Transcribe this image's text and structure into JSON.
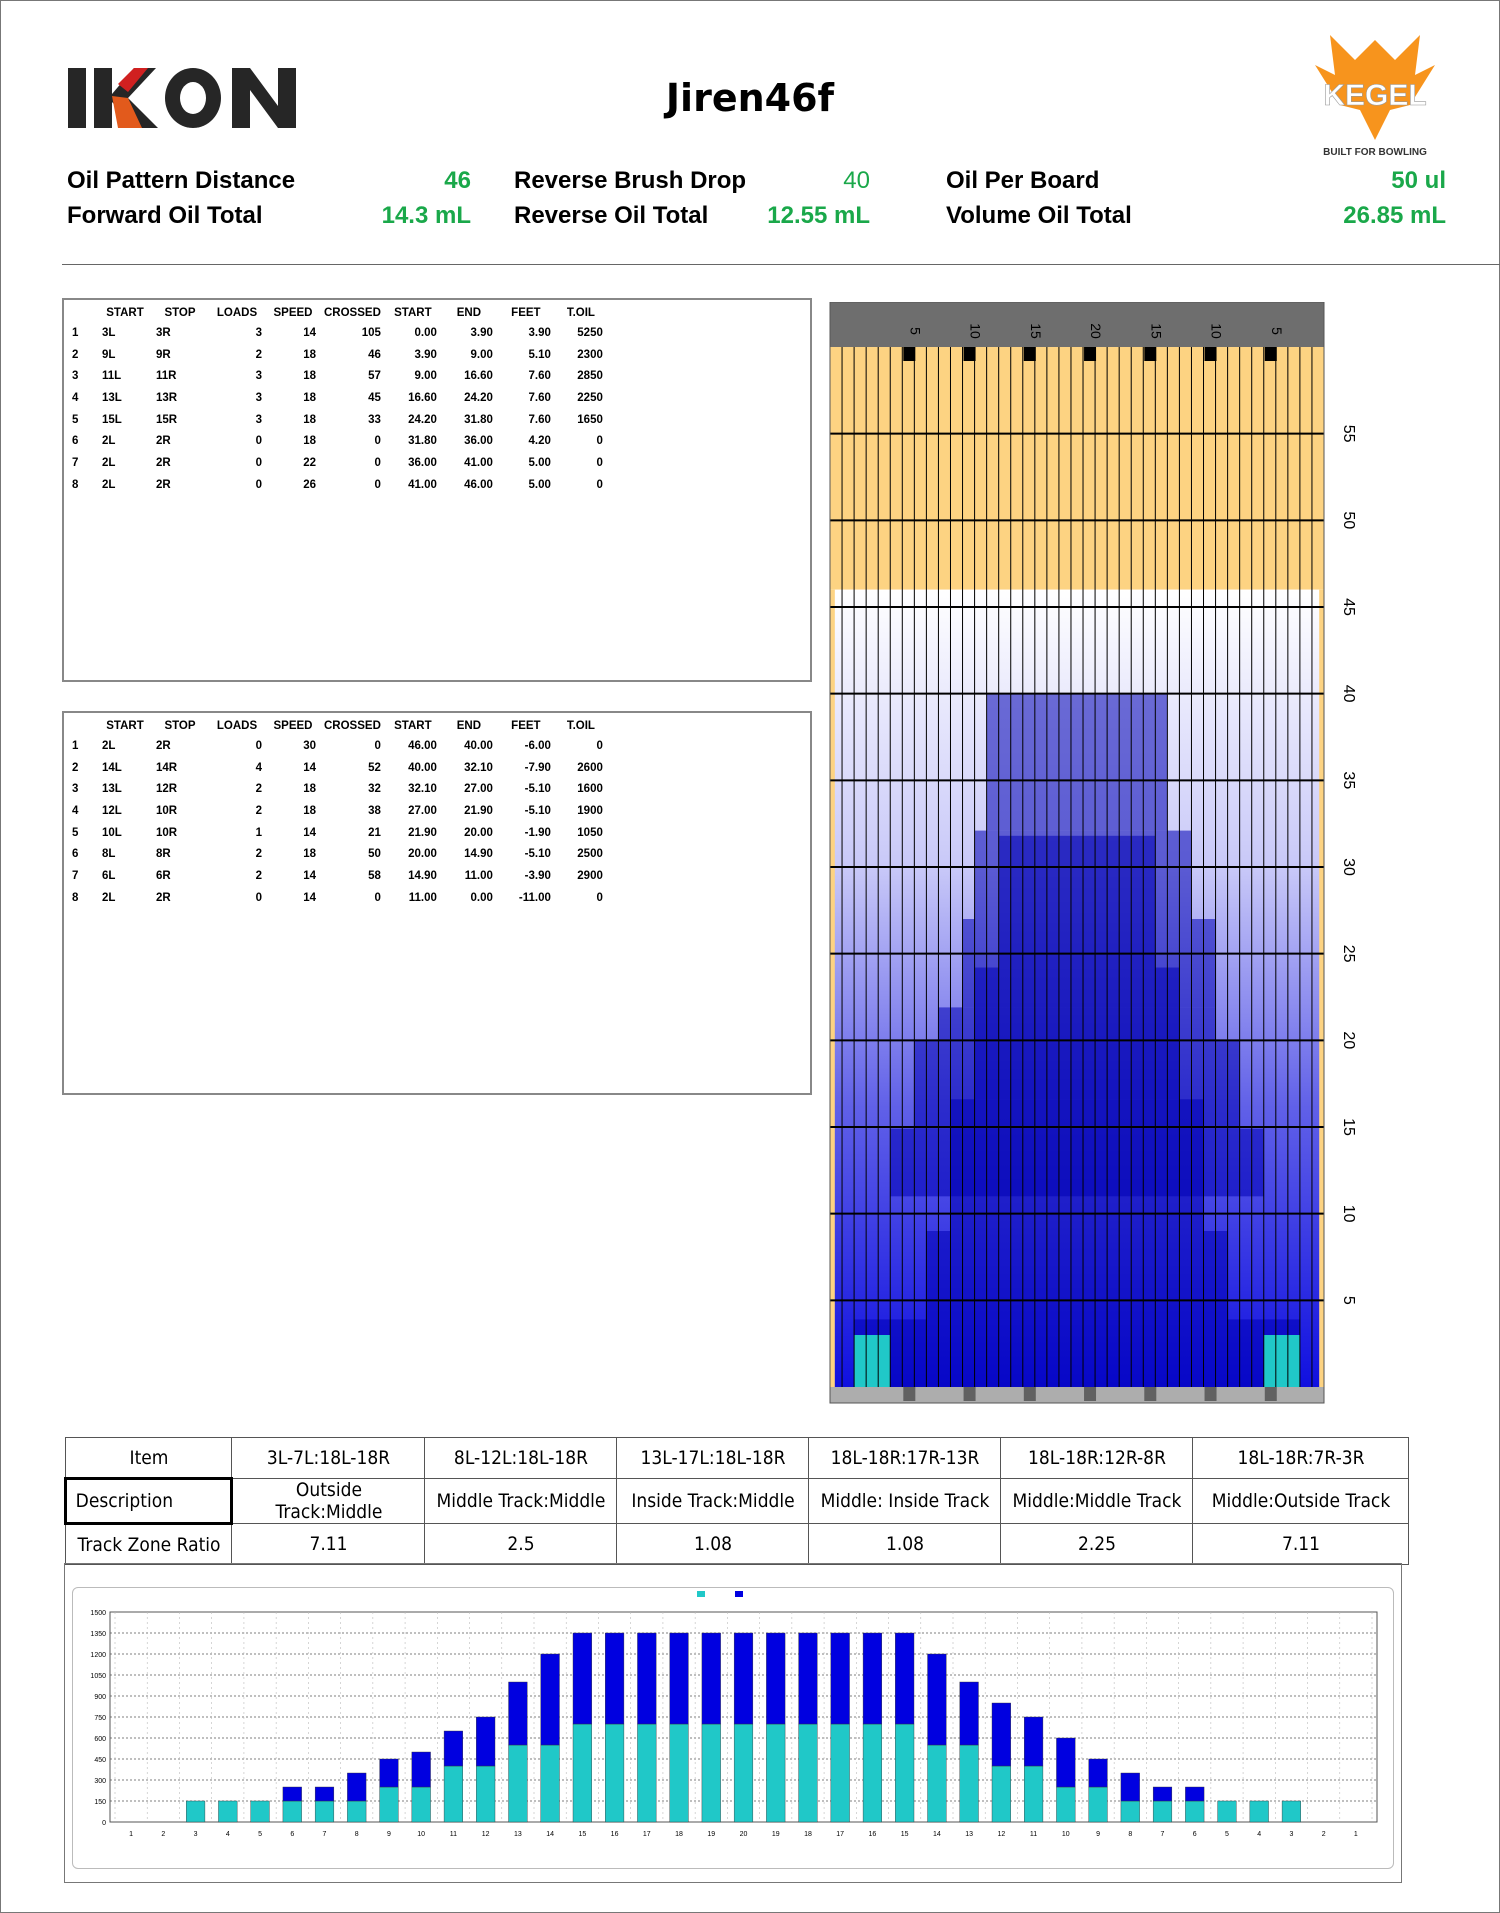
{
  "brand": {
    "left_logo": "IKON",
    "right_logo": "KEGEL",
    "right_tagline": "BUILT FOR BOWLING"
  },
  "title": "Jiren46f",
  "summary": {
    "oil_pattern_distance": {
      "label": "Oil Pattern Distance",
      "value": "46"
    },
    "forward_oil_total": {
      "label": "Forward Oil Total",
      "value": "14.3 mL"
    },
    "reverse_brush_drop": {
      "label": "Reverse Brush Drop",
      "value": "40"
    },
    "reverse_oil_total": {
      "label": "Reverse Oil Total",
      "value": "12.55 mL"
    },
    "oil_per_board": {
      "label": "Oil Per Board",
      "value": "50 ul"
    },
    "volume_oil_total": {
      "label": "Volume Oil Total",
      "value": "26.85 mL"
    }
  },
  "columns": [
    "",
    "START",
    "STOP",
    "LOADS",
    "SPEED",
    "CROSSED",
    "START",
    "END",
    "FEET",
    "T.OIL"
  ],
  "forward_table": [
    [
      "1",
      "3L",
      "3R",
      "3",
      "14",
      "105",
      "0.00",
      "3.90",
      "3.90",
      "5250"
    ],
    [
      "2",
      "9L",
      "9R",
      "2",
      "18",
      "46",
      "3.90",
      "9.00",
      "5.10",
      "2300"
    ],
    [
      "3",
      "11L",
      "11R",
      "3",
      "18",
      "57",
      "9.00",
      "16.60",
      "7.60",
      "2850"
    ],
    [
      "4",
      "13L",
      "13R",
      "3",
      "18",
      "45",
      "16.60",
      "24.20",
      "7.60",
      "2250"
    ],
    [
      "5",
      "15L",
      "15R",
      "3",
      "18",
      "33",
      "24.20",
      "31.80",
      "7.60",
      "1650"
    ],
    [
      "6",
      "2L",
      "2R",
      "0",
      "18",
      "0",
      "31.80",
      "36.00",
      "4.20",
      "0"
    ],
    [
      "7",
      "2L",
      "2R",
      "0",
      "22",
      "0",
      "36.00",
      "41.00",
      "5.00",
      "0"
    ],
    [
      "8",
      "2L",
      "2R",
      "0",
      "26",
      "0",
      "41.00",
      "46.00",
      "5.00",
      "0"
    ]
  ],
  "reverse_table": [
    [
      "1",
      "2L",
      "2R",
      "0",
      "30",
      "0",
      "46.00",
      "40.00",
      "-6.00",
      "0"
    ],
    [
      "2",
      "14L",
      "14R",
      "4",
      "14",
      "52",
      "40.00",
      "32.10",
      "-7.90",
      "2600"
    ],
    [
      "3",
      "13L",
      "12R",
      "2",
      "18",
      "32",
      "32.10",
      "27.00",
      "-5.10",
      "1600"
    ],
    [
      "4",
      "12L",
      "10R",
      "2",
      "18",
      "38",
      "27.00",
      "21.90",
      "-5.10",
      "1900"
    ],
    [
      "5",
      "10L",
      "10R",
      "1",
      "14",
      "21",
      "21.90",
      "20.00",
      "-1.90",
      "1050"
    ],
    [
      "6",
      "8L",
      "8R",
      "2",
      "18",
      "50",
      "20.00",
      "14.90",
      "-5.10",
      "2500"
    ],
    [
      "7",
      "6L",
      "6R",
      "2",
      "14",
      "58",
      "14.90",
      "11.00",
      "-3.90",
      "2900"
    ],
    [
      "8",
      "2L",
      "2R",
      "0",
      "14",
      "0",
      "11.00",
      "0.00",
      "-11.00",
      "0"
    ]
  ],
  "lane": {
    "top_labels": [
      "5",
      "10",
      "15",
      "20",
      "15",
      "10",
      "5"
    ],
    "distance_labels": [
      "5",
      "10",
      "15",
      "20",
      "25",
      "30",
      "35",
      "40",
      "45",
      "50",
      "55"
    ],
    "pattern_length_ft": 46,
    "lane_length_ft": 60,
    "colors": {
      "dry_orange": "#fdd382",
      "arrows": "#4a4a4a",
      "dark_blue": "#00007a",
      "mid_blue": "#0000c8",
      "cyan": "#20c8c8"
    }
  },
  "track_zone": {
    "header": [
      "Item",
      "3L-7L:18L-18R",
      "8L-12L:18L-18R",
      "13L-17L:18L-18R",
      "18L-18R:17R-13R",
      "18L-18R:12R-8R",
      "18L-18R:7R-3R"
    ],
    "description": [
      "Description",
      "Outside Track:Middle",
      "Middle Track:Middle",
      "Inside Track:Middle",
      "Middle: Inside Track",
      "Middle:Middle Track",
      "Middle:Outside Track"
    ],
    "ratio": [
      "Track Zone Ratio",
      "7.11",
      "2.5",
      "1.08",
      "1.08",
      "2.25",
      "7.11"
    ]
  },
  "chart_data": {
    "type": "bar",
    "stacked": true,
    "categories": [
      "1",
      "2",
      "3",
      "4",
      "5",
      "6",
      "7",
      "8",
      "9",
      "10",
      "11",
      "12",
      "13",
      "14",
      "15",
      "16",
      "17",
      "18",
      "19",
      "20",
      "19",
      "18",
      "17",
      "16",
      "15",
      "14",
      "13",
      "12",
      "11",
      "10",
      "9",
      "8",
      "7",
      "6",
      "5",
      "4",
      "3",
      "2",
      "1"
    ],
    "series": [
      {
        "values": [
          0,
          0,
          150,
          150,
          150,
          150,
          150,
          150,
          250,
          250,
          400,
          400,
          550,
          550,
          700,
          700,
          700,
          700,
          700,
          700,
          700,
          700,
          700,
          700,
          700,
          550,
          550,
          400,
          400,
          250,
          250,
          150,
          150,
          150,
          150,
          150,
          150,
          0,
          0
        ],
        "color": "#20c8c8"
      },
      {
        "values": [
          0,
          0,
          0,
          0,
          0,
          100,
          100,
          200,
          200,
          250,
          250,
          350,
          450,
          650,
          650,
          650,
          650,
          650,
          650,
          650,
          650,
          650,
          650,
          650,
          650,
          650,
          450,
          450,
          350,
          350,
          200,
          200,
          100,
          100,
          0,
          0,
          0,
          0,
          0
        ],
        "color": "#0000e0"
      }
    ],
    "ylim": [
      0,
      1500
    ],
    "yticks": [
      "0",
      "150",
      "300",
      "450",
      "600",
      "750",
      "900",
      "1050",
      "1200",
      "1350",
      "1500"
    ],
    "grid": true
  }
}
